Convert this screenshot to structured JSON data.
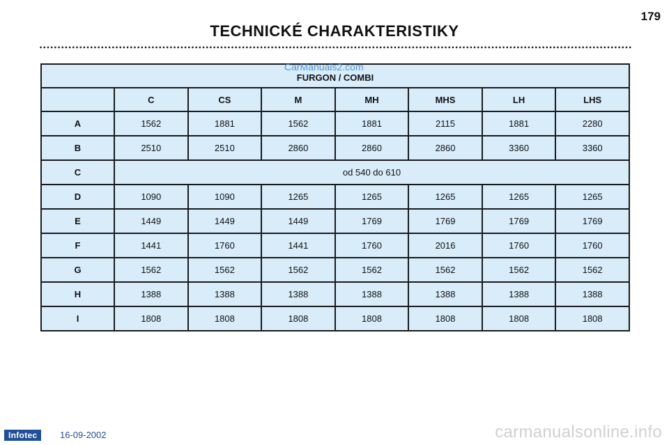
{
  "header": {
    "page_number": "179",
    "title": "TECHNICKÉ CHARAKTERISTIKY"
  },
  "watermark_top": "CarManuals2.com",
  "table": {
    "section": "FURGON / COMBI",
    "columns": [
      "C",
      "CS",
      "M",
      "MH",
      "MHS",
      "LH",
      "LHS"
    ],
    "rows": [
      {
        "label": "A",
        "values": [
          "1562",
          "1881",
          "1562",
          "1881",
          "2115",
          "1881",
          "2280"
        ]
      },
      {
        "label": "B",
        "values": [
          "2510",
          "2510",
          "2860",
          "2860",
          "2860",
          "3360",
          "3360"
        ]
      },
      {
        "label": "C",
        "span_value": "od 540 do 610"
      },
      {
        "label": "D",
        "values": [
          "1090",
          "1090",
          "1265",
          "1265",
          "1265",
          "1265",
          "1265"
        ]
      },
      {
        "label": "E",
        "values": [
          "1449",
          "1449",
          "1449",
          "1769",
          "1769",
          "1769",
          "1769"
        ]
      },
      {
        "label": "F",
        "values": [
          "1441",
          "1760",
          "1441",
          "1760",
          "2016",
          "1760",
          "1760"
        ]
      },
      {
        "label": "G",
        "values": [
          "1562",
          "1562",
          "1562",
          "1562",
          "1562",
          "1562",
          "1562"
        ]
      },
      {
        "label": "H",
        "values": [
          "1388",
          "1388",
          "1388",
          "1388",
          "1388",
          "1388",
          "1388"
        ]
      },
      {
        "label": "I",
        "values": [
          "1808",
          "1808",
          "1808",
          "1808",
          "1808",
          "1808",
          "1808"
        ]
      }
    ]
  },
  "footer": {
    "logo_text": "Infotec",
    "date": "16-09-2002",
    "watermark": "carmanualsonline.info"
  },
  "colors": {
    "table_fill": "#d8ecfa",
    "logo_bg": "#1f4f99"
  }
}
